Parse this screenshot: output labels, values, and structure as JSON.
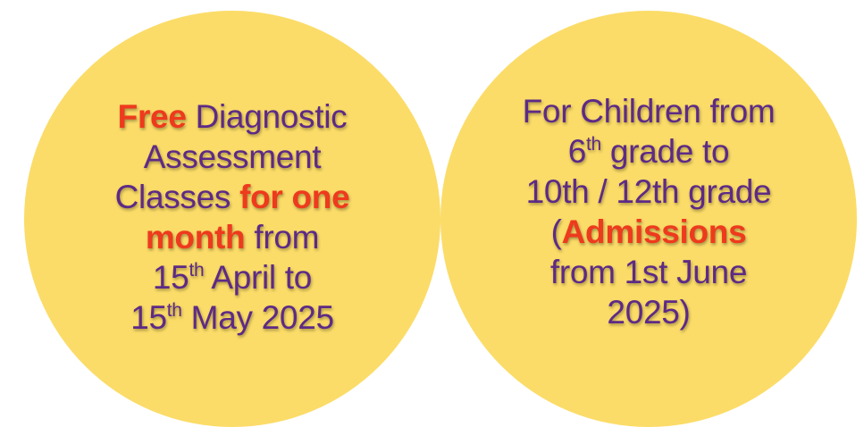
{
  "left_circle": {
    "free": "Free",
    "diagnostic": " Diagnostic",
    "assessment": "Assessment",
    "classes": "Classes ",
    "for_one": "for one",
    "month": "month",
    "from": " from",
    "date1_day": "15",
    "date1_suffix": "th",
    "date1_rest": " April to",
    "date2_day": "15",
    "date2_suffix": "th",
    "date2_rest": " May 2025"
  },
  "right_circle": {
    "line1": "For Children from",
    "grade_num": "6",
    "grade_suffix": "th",
    "grade_rest": " grade to",
    "line3": "10th / 12th grade",
    "open_paren": "(",
    "admissions": "Admissions",
    "line5": "from 1st June",
    "line6": "2025)"
  },
  "colors": {
    "circle_fill": "#fbdc68",
    "text_purple": "#5d2a86",
    "highlight_red": "#ee3a1d"
  }
}
